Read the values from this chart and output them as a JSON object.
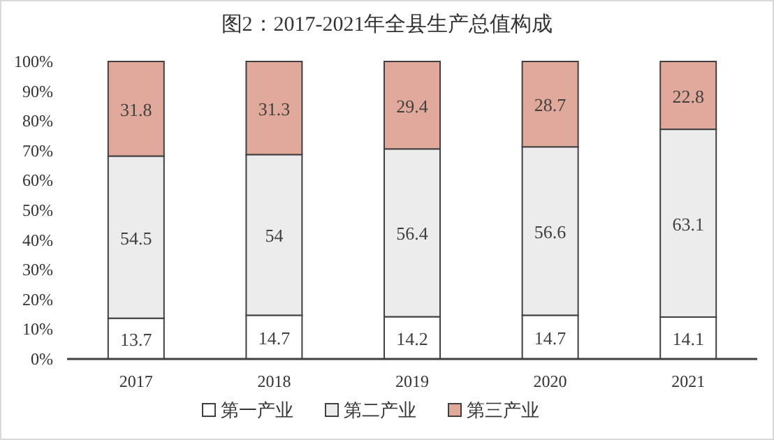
{
  "chart_data": {
    "type": "bar",
    "stacked": true,
    "title": "图2：2017-2021年全县生产总值构成",
    "categories": [
      "2017",
      "2018",
      "2019",
      "2020",
      "2021"
    ],
    "series": [
      {
        "name": "第一产业",
        "color": "#ffffff",
        "values": [
          13.7,
          14.7,
          14.2,
          14.7,
          14.1
        ]
      },
      {
        "name": "第二产业",
        "color": "#ececec",
        "values": [
          54.5,
          54,
          56.4,
          56.6,
          63.1
        ]
      },
      {
        "name": "第三产业",
        "color": "#e0a99b",
        "values": [
          31.8,
          31.3,
          29.4,
          28.7,
          22.8
        ]
      }
    ],
    "ylim": [
      0,
      100
    ],
    "yticks": [
      {
        "value": 0,
        "label": "0%"
      },
      {
        "value": 10,
        "label": "10%"
      },
      {
        "value": 20,
        "label": "20%"
      },
      {
        "value": 30,
        "label": "30%"
      },
      {
        "value": 40,
        "label": "40%"
      },
      {
        "value": 50,
        "label": "50%"
      },
      {
        "value": 60,
        "label": "60%"
      },
      {
        "value": 70,
        "label": "70%"
      },
      {
        "value": 80,
        "label": "80%"
      },
      {
        "value": 90,
        "label": "90%"
      },
      {
        "value": 100,
        "label": "100%"
      }
    ],
    "data_labels": true,
    "grid": false,
    "legend": "bottom"
  }
}
